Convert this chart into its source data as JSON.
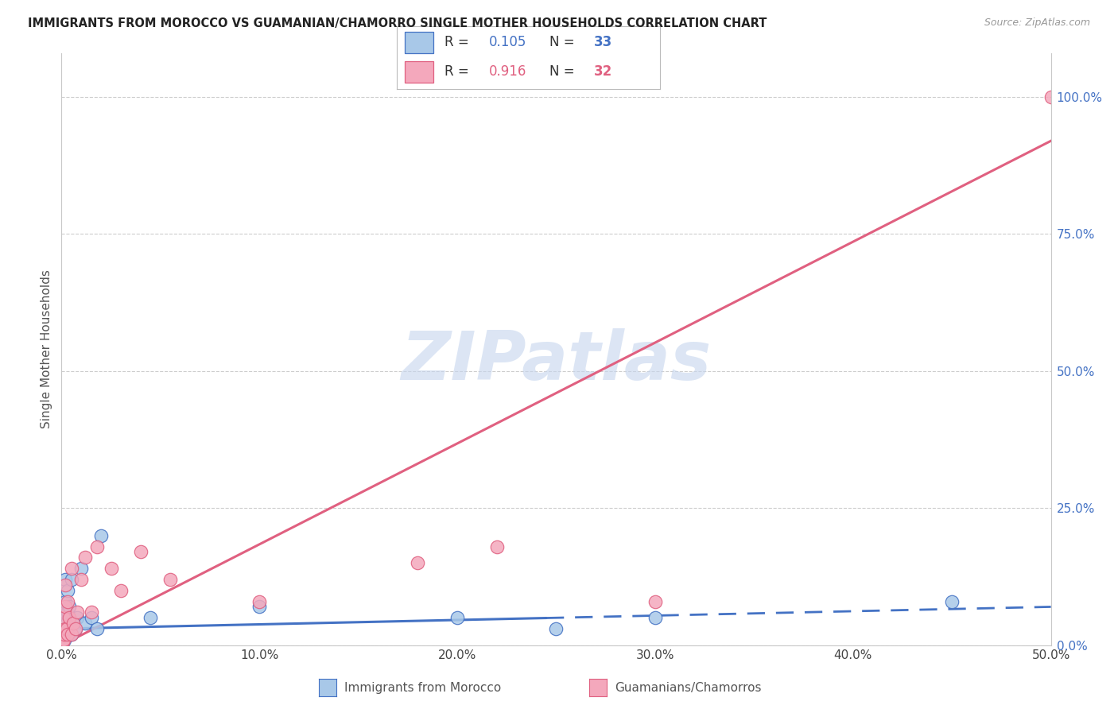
{
  "title": "IMMIGRANTS FROM MOROCCO VS GUAMANIAN/CHAMORRO SINGLE MOTHER HOUSEHOLDS CORRELATION CHART",
  "source": "Source: ZipAtlas.com",
  "ylabel": "Single Mother Households",
  "legend_label1": "Immigrants from Morocco",
  "legend_label2": "Guamanians/Chamorros",
  "r1": 0.105,
  "n1": 33,
  "r2": 0.916,
  "n2": 32,
  "color1": "#a8c8e8",
  "color2": "#f4a8bc",
  "line_color1": "#4472c4",
  "line_color2": "#e06080",
  "xlim": [
    0,
    0.5
  ],
  "ylim": [
    0,
    1.08
  ],
  "xticks": [
    0.0,
    0.1,
    0.2,
    0.3,
    0.4,
    0.5
  ],
  "yticks_right": [
    0.0,
    0.25,
    0.5,
    0.75,
    1.0
  ],
  "scatter1_x": [
    0.0002,
    0.0005,
    0.0008,
    0.001,
    0.001,
    0.0012,
    0.0015,
    0.0015,
    0.002,
    0.002,
    0.002,
    0.0025,
    0.003,
    0.003,
    0.003,
    0.004,
    0.004,
    0.005,
    0.005,
    0.006,
    0.007,
    0.008,
    0.01,
    0.012,
    0.015,
    0.018,
    0.02,
    0.045,
    0.1,
    0.2,
    0.25,
    0.3,
    0.45
  ],
  "scatter1_y": [
    0.005,
    0.01,
    0.005,
    0.02,
    0.04,
    0.015,
    0.01,
    0.06,
    0.02,
    0.08,
    0.12,
    0.04,
    0.02,
    0.06,
    0.1,
    0.03,
    0.07,
    0.02,
    0.12,
    0.04,
    0.03,
    0.05,
    0.14,
    0.04,
    0.05,
    0.03,
    0.2,
    0.05,
    0.07,
    0.05,
    0.03,
    0.05,
    0.08
  ],
  "scatter2_x": [
    0.0002,
    0.0005,
    0.0008,
    0.001,
    0.001,
    0.0012,
    0.0015,
    0.002,
    0.002,
    0.002,
    0.0025,
    0.003,
    0.003,
    0.004,
    0.005,
    0.005,
    0.006,
    0.007,
    0.008,
    0.01,
    0.012,
    0.015,
    0.018,
    0.025,
    0.03,
    0.04,
    0.055,
    0.1,
    0.18,
    0.22,
    0.3,
    0.5
  ],
  "scatter2_y": [
    0.005,
    0.01,
    0.005,
    0.02,
    0.05,
    0.01,
    0.02,
    0.03,
    0.07,
    0.11,
    0.03,
    0.02,
    0.08,
    0.05,
    0.02,
    0.14,
    0.04,
    0.03,
    0.06,
    0.12,
    0.16,
    0.06,
    0.18,
    0.14,
    0.1,
    0.17,
    0.12,
    0.08,
    0.15,
    0.18,
    0.08,
    1.0
  ],
  "trend1_x": [
    0.0,
    0.5
  ],
  "trend1_y": [
    0.03,
    0.07
  ],
  "trend2_x": [
    0.0,
    0.5
  ],
  "trend2_y": [
    0.0,
    0.92
  ],
  "trend1_solid_end": 0.245,
  "watermark": "ZIPatlas",
  "background_color": "#ffffff",
  "grid_color": "#c8c8c8"
}
